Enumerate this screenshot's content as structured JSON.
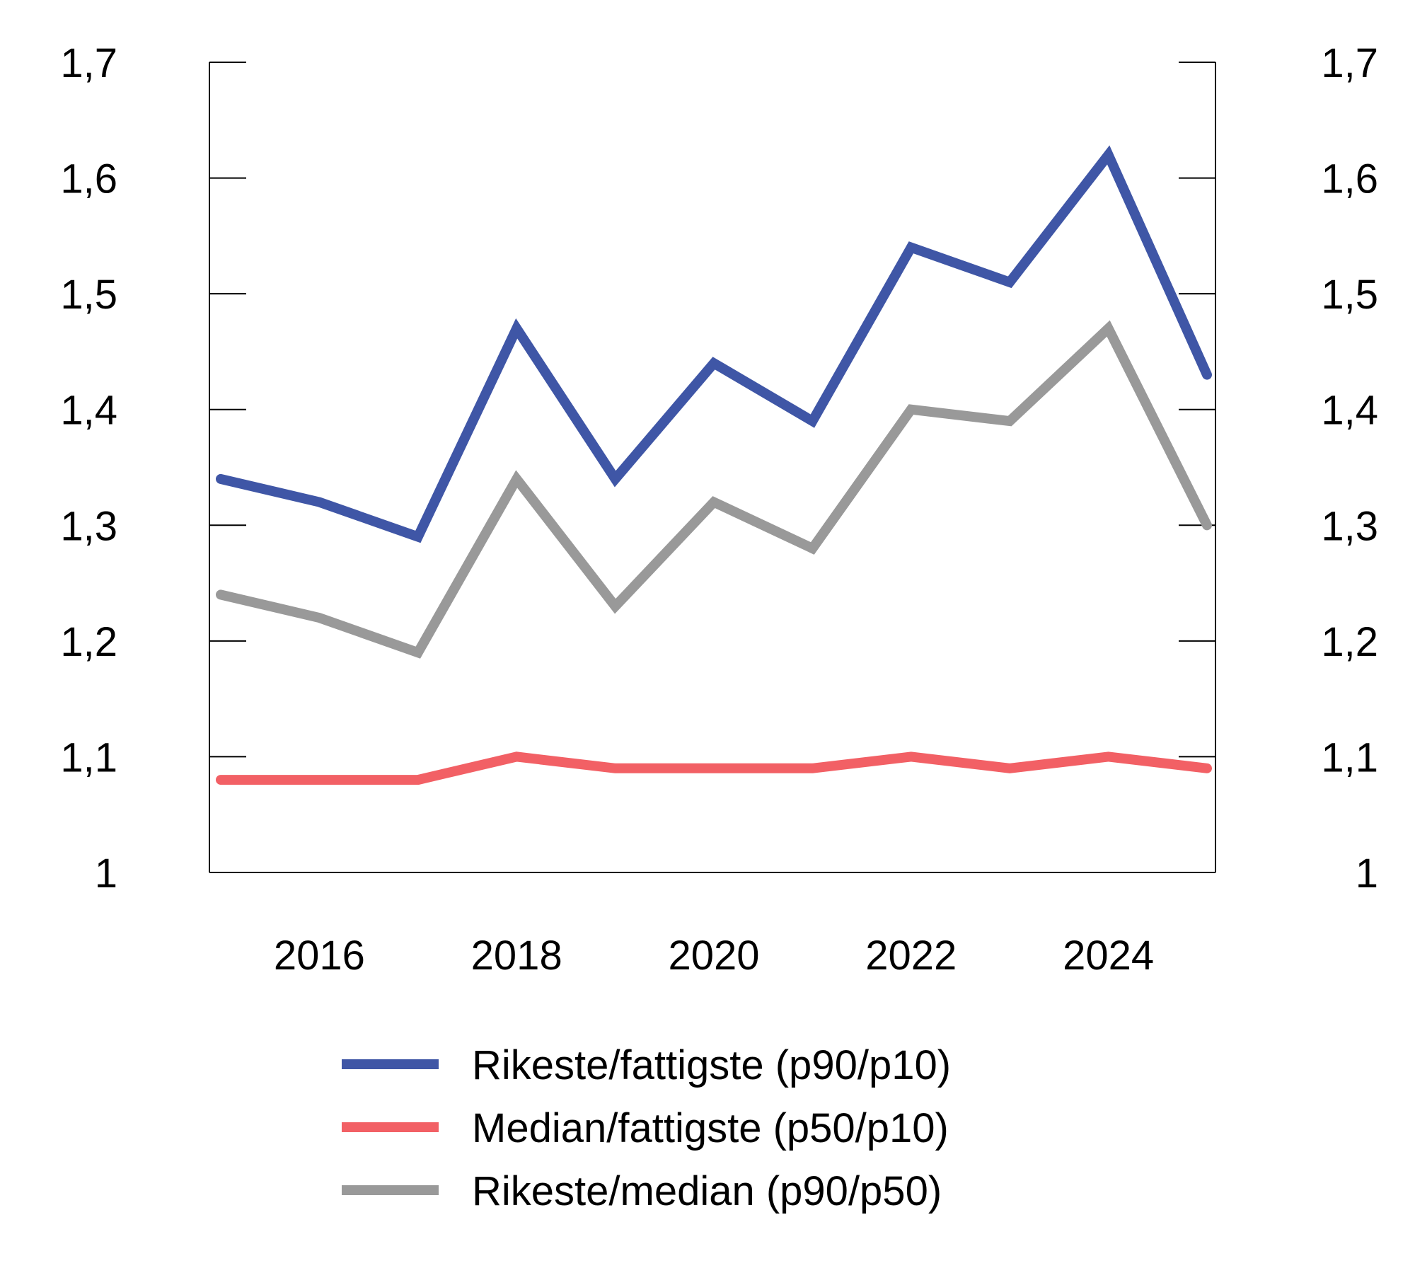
{
  "chart_data": {
    "type": "line",
    "title": "",
    "xlabel": "",
    "ylabel": "",
    "x": [
      2015,
      2016,
      2017,
      2018,
      2019,
      2020,
      2021,
      2022,
      2023,
      2024,
      2025
    ],
    "x_tick_labels": [
      "2016",
      "2018",
      "2020",
      "2022",
      "2024"
    ],
    "y_tick_labels": [
      "1",
      "1,1",
      "1,2",
      "1,3",
      "1,4",
      "1,5",
      "1,6",
      "1,7"
    ],
    "ylim": [
      1,
      1.7
    ],
    "secondary_y_axis": true,
    "grid": false,
    "legend_position": "bottom",
    "series": [
      {
        "name": "Rikeste/fattigste (p90/p10)",
        "color": "#3f56a6",
        "values": [
          1.34,
          1.32,
          1.29,
          1.47,
          1.34,
          1.44,
          1.39,
          1.54,
          1.51,
          1.62,
          1.43
        ]
      },
      {
        "name": "Median/fattigste (p50/p10)",
        "color": "#f26065",
        "values": [
          1.08,
          1.08,
          1.08,
          1.1,
          1.09,
          1.09,
          1.09,
          1.1,
          1.09,
          1.1,
          1.09
        ]
      },
      {
        "name": "Rikeste/median (p90/p50)",
        "color": "#999999",
        "values": [
          1.24,
          1.22,
          1.19,
          1.34,
          1.23,
          1.32,
          1.28,
          1.4,
          1.39,
          1.47,
          1.3
        ]
      }
    ]
  }
}
